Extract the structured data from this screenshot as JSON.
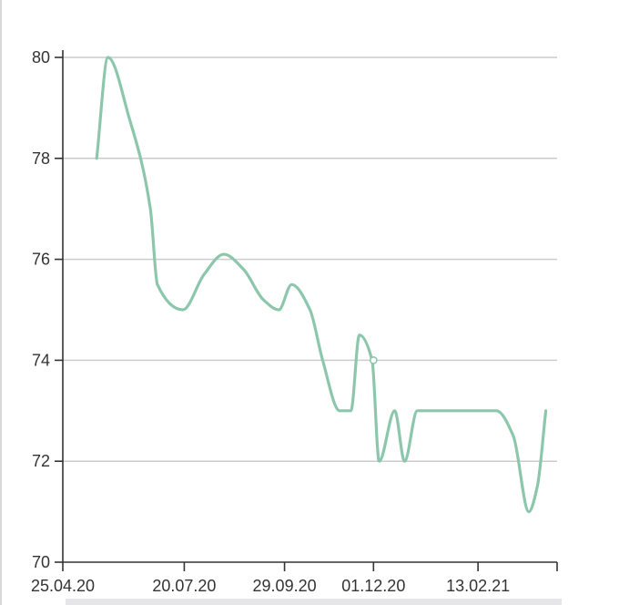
{
  "chart_data": {
    "type": "line",
    "title": "",
    "xlabel": "",
    "ylabel": "",
    "ylim": [
      70,
      80
    ],
    "yticks": [
      70,
      72,
      74,
      76,
      78,
      80
    ],
    "ytick_labels": [
      "70",
      "72",
      "74",
      "76",
      "78",
      "80"
    ],
    "xlim": [
      "2020-04-25",
      "2021-04-10"
    ],
    "xticks": [
      "2020-04-25",
      "2020-07-20",
      "2020-09-29",
      "2020-12-01",
      "2021-02-13"
    ],
    "xtick_labels": [
      "25.04.20",
      "20.07.20",
      "29.09.20",
      "01.12.20",
      "13.02.21"
    ],
    "grid": {
      "horizontal": true,
      "vertical": false
    },
    "line_color": "#8cc7ac",
    "grid_color": "#cccccc",
    "axis_color": "#333333",
    "highlighted_point": {
      "x": "2020-12-01",
      "y": 74.0
    },
    "series": [
      {
        "name": "",
        "x": [
          "2020-05-19",
          "2020-05-27",
          "2020-06-11",
          "2020-06-26",
          "2020-07-01",
          "2020-07-19",
          "2020-08-03",
          "2020-08-17",
          "2020-08-31",
          "2020-09-14",
          "2020-09-25",
          "2020-10-04",
          "2020-10-17",
          "2020-10-26",
          "2020-11-07",
          "2020-11-15",
          "2020-11-21",
          "2020-11-30",
          "2020-12-05",
          "2020-12-16",
          "2020-12-23",
          "2021-01-01",
          "2021-01-09",
          "2021-01-16",
          "2021-02-02",
          "2021-02-18",
          "2021-02-26",
          "2021-03-10",
          "2021-03-21",
          "2021-03-27",
          "2021-04-02"
        ],
        "y": [
          78.0,
          80.0,
          78.8,
          77.0,
          75.5,
          75.0,
          75.7,
          76.1,
          75.8,
          75.2,
          75.0,
          75.5,
          75.0,
          74.0,
          73.0,
          73.0,
          74.5,
          74.0,
          72.0,
          73.0,
          72.0,
          73.0,
          73.0,
          73.0,
          73.0,
          73.0,
          73.0,
          72.5,
          71.0,
          71.5,
          73.0
        ]
      }
    ]
  }
}
